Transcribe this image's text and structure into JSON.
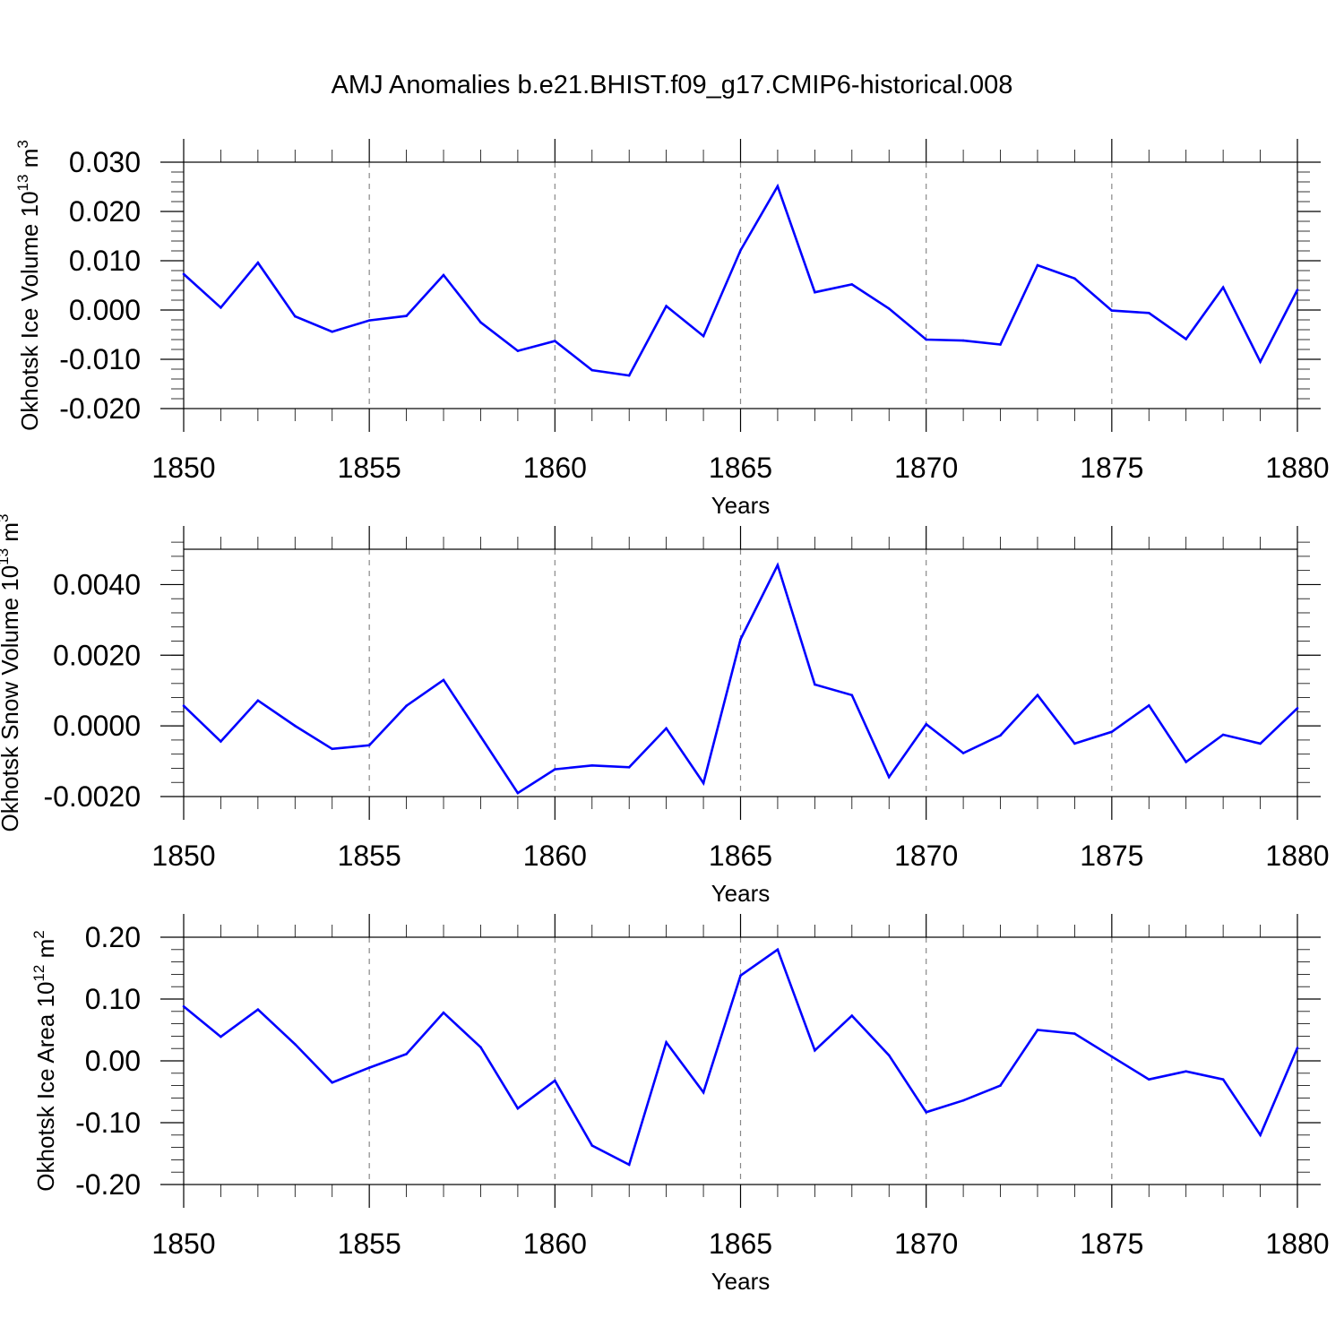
{
  "title": "AMJ Anomalies b.e21.BHIST.f09_g17.CMIP6-historical.008",
  "colors": {
    "line": "#0000ff",
    "grid": "#888888",
    "axis": "#000000"
  },
  "chart_data": [
    {
      "type": "line",
      "xlabel": "Years",
      "ylabel": {
        "text": "Okhotsk Ice Volume 10",
        "sup1": "13",
        "mid": " m",
        "sup2": "3"
      },
      "xlim": [
        1850,
        1880
      ],
      "ylim": [
        -0.02,
        0.03
      ],
      "xticks": [
        1850,
        1855,
        1860,
        1865,
        1870,
        1875,
        1880
      ],
      "xtick_labels": [
        "1850",
        "1855",
        "1860",
        "1865",
        "1870",
        "1875",
        "1880"
      ],
      "yticks": [
        -0.02,
        -0.01,
        0.0,
        0.01,
        0.02,
        0.03
      ],
      "ytick_labels": [
        "-0.020",
        "-0.010",
        "0.000",
        "0.010",
        "0.020",
        "0.030"
      ],
      "y_minor_step": 0.002,
      "grid": "x dashed",
      "x": [
        1850,
        1851,
        1852,
        1853,
        1854,
        1855,
        1856,
        1857,
        1858,
        1859,
        1860,
        1861,
        1862,
        1863,
        1864,
        1865,
        1866,
        1867,
        1868,
        1869,
        1870,
        1871,
        1872,
        1873,
        1874,
        1875,
        1876,
        1877,
        1878,
        1879,
        1880
      ],
      "series": [
        {
          "values": [
            0.0073,
            0.0005,
            0.0096,
            -0.0013,
            -0.0044,
            -0.0021,
            -0.0012,
            0.0071,
            -0.0025,
            -0.0083,
            -0.0063,
            -0.0122,
            -0.0133,
            0.0008,
            -0.0053,
            0.0121,
            0.0251,
            0.0036,
            0.0052,
            0.0003,
            -0.006,
            -0.0062,
            -0.007,
            0.0091,
            0.0064,
            -0.0001,
            -0.0006,
            -0.0059,
            0.0046,
            -0.0105,
            0.0041
          ]
        }
      ]
    },
    {
      "type": "line",
      "xlabel": "Years",
      "ylabel": {
        "text": "Okhotsk Snow Volume 10",
        "sup1": "13",
        "mid": " m",
        "sup2": "3"
      },
      "xlim": [
        1850,
        1880
      ],
      "ylim": [
        -0.002,
        0.005
      ],
      "xticks": [
        1850,
        1855,
        1860,
        1865,
        1870,
        1875,
        1880
      ],
      "xtick_labels": [
        "1850",
        "1855",
        "1860",
        "1865",
        "1870",
        "1875",
        "1880"
      ],
      "yticks": [
        -0.002,
        0.0,
        0.002,
        0.004
      ],
      "ytick_labels": [
        "-0.0020",
        "0.0000",
        "0.0020",
        "0.0040"
      ],
      "y_minor_step": 0.0004,
      "grid": "x dashed",
      "x": [
        1850,
        1851,
        1852,
        1853,
        1854,
        1855,
        1856,
        1857,
        1858,
        1859,
        1860,
        1861,
        1862,
        1863,
        1864,
        1865,
        1866,
        1867,
        1868,
        1869,
        1870,
        1871,
        1872,
        1873,
        1874,
        1875,
        1876,
        1877,
        1878,
        1879,
        1880
      ],
      "series": [
        {
          "values": [
            0.00057,
            -0.00044,
            0.00072,
            0.0,
            -0.00065,
            -0.00055,
            0.00057,
            0.0013,
            -0.0003,
            -0.0019,
            -0.00123,
            -0.00112,
            -0.00117,
            -7e-05,
            -0.00162,
            0.00245,
            0.00455,
            0.00117,
            0.00087,
            -0.00145,
            5e-05,
            -0.00077,
            -0.00027,
            0.00087,
            -0.0005,
            -0.00017,
            0.00058,
            -0.00102,
            -0.00025,
            -0.0005,
            0.0005
          ]
        }
      ]
    },
    {
      "type": "line",
      "xlabel": "Years",
      "ylabel": {
        "text": "Okhotsk Ice Area 10",
        "sup1": "12",
        "mid": " m",
        "sup2": "2"
      },
      "xlim": [
        1850,
        1880
      ],
      "ylim": [
        -0.2,
        0.2
      ],
      "xticks": [
        1850,
        1855,
        1860,
        1865,
        1870,
        1875,
        1880
      ],
      "xtick_labels": [
        "1850",
        "1855",
        "1860",
        "1865",
        "1870",
        "1875",
        "1880"
      ],
      "yticks": [
        -0.2,
        -0.1,
        0.0,
        0.1,
        0.2
      ],
      "ytick_labels": [
        "-0.20",
        "-0.10",
        "0.00",
        "0.10",
        "0.20"
      ],
      "y_minor_step": 0.02,
      "grid": "x dashed",
      "x": [
        1850,
        1851,
        1852,
        1853,
        1854,
        1855,
        1856,
        1857,
        1858,
        1859,
        1860,
        1861,
        1862,
        1863,
        1864,
        1865,
        1866,
        1867,
        1868,
        1869,
        1870,
        1871,
        1872,
        1873,
        1874,
        1875,
        1876,
        1877,
        1878,
        1879,
        1880
      ],
      "series": [
        {
          "values": [
            0.088,
            0.039,
            0.083,
            0.027,
            -0.035,
            -0.011,
            0.011,
            0.078,
            0.022,
            -0.077,
            -0.032,
            -0.137,
            -0.168,
            0.03,
            -0.051,
            0.138,
            0.18,
            0.017,
            0.073,
            0.009,
            -0.083,
            -0.064,
            -0.04,
            0.05,
            0.044,
            0.007,
            -0.03,
            -0.017,
            -0.03,
            -0.12,
            0.021
          ]
        }
      ]
    }
  ]
}
